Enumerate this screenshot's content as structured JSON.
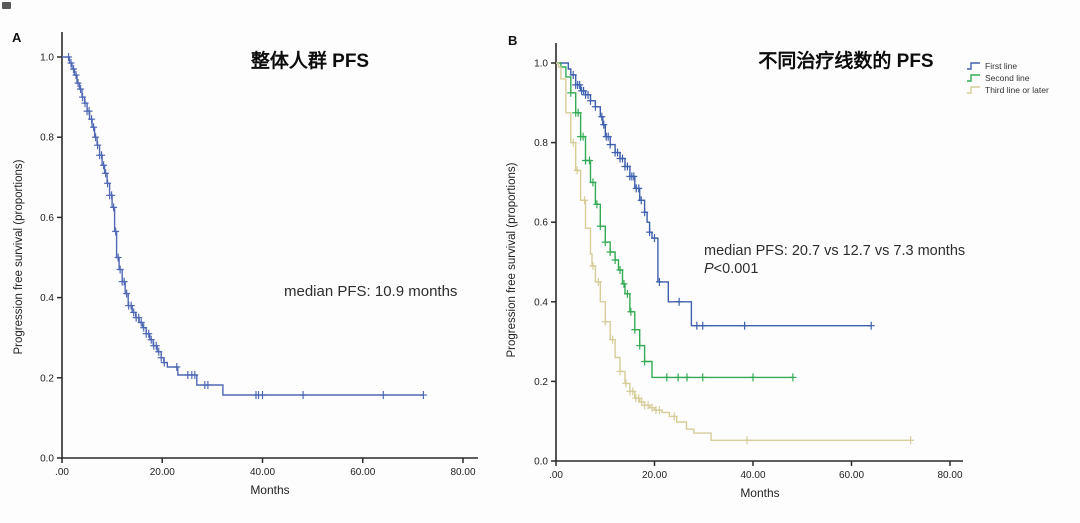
{
  "panels": [
    {
      "panel_letter": "A",
      "title": "整体人群 PFS",
      "xlabel": "Months",
      "ylabel": "Progression free survival (proportions)",
      "annotation": "median PFS: 10.9 months"
    },
    {
      "panel_letter": "B",
      "title": "不同治疗线数的 PFS",
      "xlabel": "Months",
      "ylabel": "Progression free survival (proportions)",
      "annotation": "median PFS: 20.7 vs 12.7 vs 7.3 months",
      "p_value": "P<0.001",
      "legend": [
        {
          "label": "First line",
          "color": "#3e5fae"
        },
        {
          "label": "Second line",
          "color": "#33ab55"
        },
        {
          "label": "Third line or later",
          "color": "#d6cd98"
        }
      ]
    }
  ],
  "colors": {
    "axis": "#2b2b2b",
    "panel_a_curve": "#5069b5",
    "first_line": "#3e5fae",
    "second_line": "#33ab55",
    "third_line": "#d6cd98"
  },
  "chart_data": [
    {
      "type": "line",
      "subtype": "kaplan_meier_step",
      "panel": "A",
      "title": "整体人群 PFS",
      "xlabel": "Months",
      "ylabel": "Progression free survival (proportions)",
      "xlim": [
        0,
        80
      ],
      "ylim": [
        0.0,
        1.0
      ],
      "xtick_values": [
        0,
        20,
        40,
        60,
        80
      ],
      "xtick_labels": [
        ".00",
        "20.00",
        "40.00",
        "60.00",
        "80.00"
      ],
      "ytick_values": [
        0.0,
        0.2,
        0.4,
        0.6,
        0.8,
        1.0
      ],
      "ytick_labels": [
        "0.0",
        "0.2",
        "0.4",
        "0.6",
        "0.8",
        "1.0"
      ],
      "grid": false,
      "annotation": "median PFS: 10.9 months",
      "series": [
        {
          "name": "整体人群",
          "color": "#5069b5",
          "median_pfs_months": 10.9,
          "points": [
            [
              0,
              1.0
            ],
            [
              1,
              1.0
            ],
            [
              1.5,
              0.985
            ],
            [
              2,
              0.97
            ],
            [
              2.5,
              0.955
            ],
            [
              3,
              0.935
            ],
            [
              3.5,
              0.92
            ],
            [
              4,
              0.9
            ],
            [
              4.5,
              0.885
            ],
            [
              5,
              0.865
            ],
            [
              5.5,
              0.845
            ],
            [
              6,
              0.825
            ],
            [
              6.5,
              0.8
            ],
            [
              7,
              0.78
            ],
            [
              7.5,
              0.755
            ],
            [
              8,
              0.73
            ],
            [
              8.5,
              0.71
            ],
            [
              9,
              0.685
            ],
            [
              9.5,
              0.655
            ],
            [
              10,
              0.625
            ],
            [
              10.5,
              0.565
            ],
            [
              10.9,
              0.5
            ],
            [
              11.4,
              0.47
            ],
            [
              12,
              0.44
            ],
            [
              12.6,
              0.41
            ],
            [
              13.2,
              0.38
            ],
            [
              14,
              0.363
            ],
            [
              14.7,
              0.35
            ],
            [
              15.4,
              0.338
            ],
            [
              16.1,
              0.325
            ],
            [
              16.8,
              0.31
            ],
            [
              17.5,
              0.295
            ],
            [
              18.2,
              0.28
            ],
            [
              19,
              0.265
            ],
            [
              19.8,
              0.25
            ],
            [
              20.3,
              0.238
            ],
            [
              21,
              0.227
            ],
            [
              23.1,
              0.207
            ],
            [
              26.9,
              0.182
            ],
            [
              32.1,
              0.157
            ],
            [
              72.1,
              0.157
            ]
          ],
          "censor_months": [
            1.3,
            1.8,
            2.3,
            2.8,
            3.2,
            3.7,
            4.1,
            4.6,
            5,
            5.4,
            5.9,
            6.3,
            6.7,
            7.1,
            7.5,
            7.9,
            8.3,
            8.7,
            9.1,
            9.5,
            9.9,
            10.3,
            10.7,
            11.2,
            11.6,
            12,
            12.4,
            12.9,
            13.3,
            13.8,
            14.3,
            14.8,
            15.3,
            15.8,
            16.3,
            16.8,
            17.3,
            17.8,
            18.3,
            18.8,
            19.3,
            19.8,
            20.4,
            22.9,
            25.1,
            25.9,
            26.5,
            28.5,
            29.1,
            38.7,
            39.2,
            40,
            48.1,
            64.1,
            72.1
          ]
        }
      ]
    },
    {
      "type": "line",
      "subtype": "kaplan_meier_step",
      "panel": "B",
      "title": "不同治疗线数的 PFS",
      "xlabel": "Months",
      "ylabel": "Progression free survival (proportions)",
      "xlim": [
        0,
        80
      ],
      "ylim": [
        0.0,
        1.0
      ],
      "xtick_values": [
        0,
        20,
        40,
        60,
        80
      ],
      "xtick_labels": [
        ".00",
        "20.00",
        "40.00",
        "60.00",
        "80.00"
      ],
      "ytick_values": [
        0.0,
        0.2,
        0.4,
        0.6,
        0.8,
        1.0
      ],
      "ytick_labels": [
        "0.0",
        "0.2",
        "0.4",
        "0.6",
        "0.8",
        "1.0"
      ],
      "grid": false,
      "annotation": "median PFS: 20.7 vs 12.7 vs 7.3 months",
      "p_value": "P<0.001",
      "legend_position": "top-right outside",
      "series": [
        {
          "name": "First line",
          "color": "#3e5fae",
          "median_pfs_months": 20.7,
          "points": [
            [
              0,
              1.0
            ],
            [
              2,
              1.0
            ],
            [
              2.5,
              0.985
            ],
            [
              3,
              0.97
            ],
            [
              4,
              0.945
            ],
            [
              5,
              0.93
            ],
            [
              6,
              0.92
            ],
            [
              7,
              0.905
            ],
            [
              8,
              0.89
            ],
            [
              9,
              0.865
            ],
            [
              9.5,
              0.845
            ],
            [
              10,
              0.815
            ],
            [
              11,
              0.795
            ],
            [
              12,
              0.775
            ],
            [
              13,
              0.76
            ],
            [
              14,
              0.74
            ],
            [
              15,
              0.715
            ],
            [
              16,
              0.685
            ],
            [
              17,
              0.655
            ],
            [
              18,
              0.625
            ],
            [
              18.5,
              0.6
            ],
            [
              19,
              0.575
            ],
            [
              19.5,
              0.56
            ],
            [
              20.7,
              0.45
            ],
            [
              22.8,
              0.4
            ],
            [
              27.5,
              0.34
            ],
            [
              64,
              0.34
            ]
          ],
          "censor_months": [
            3.5,
            4,
            4.4,
            4.8,
            5.2,
            5.6,
            6,
            6.5,
            7,
            8,
            9.3,
            9.7,
            10.2,
            10.6,
            11,
            12,
            12.5,
            13,
            13.5,
            14,
            14.5,
            15,
            15.4,
            15.8,
            16.3,
            16.8,
            17.3,
            18,
            19,
            20,
            21,
            25,
            28.6,
            29.8,
            38.3,
            64
          ]
        },
        {
          "name": "Second line",
          "color": "#33ab55",
          "median_pfs_months": 12.7,
          "points": [
            [
              0,
              1.0
            ],
            [
              1,
              0.99
            ],
            [
              2,
              0.965
            ],
            [
              3,
              0.925
            ],
            [
              4,
              0.875
            ],
            [
              5,
              0.815
            ],
            [
              6,
              0.755
            ],
            [
              7,
              0.7
            ],
            [
              8,
              0.645
            ],
            [
              9,
              0.59
            ],
            [
              10,
              0.55
            ],
            [
              11,
              0.525
            ],
            [
              12,
              0.505
            ],
            [
              12.7,
              0.48
            ],
            [
              13.5,
              0.445
            ],
            [
              14,
              0.42
            ],
            [
              15,
              0.375
            ],
            [
              16,
              0.33
            ],
            [
              17,
              0.29
            ],
            [
              18,
              0.25
            ],
            [
              19.5,
              0.21
            ],
            [
              48.1,
              0.21
            ]
          ],
          "censor_months": [
            3,
            4,
            4.5,
            5,
            5.5,
            6,
            6.8,
            7.5,
            8.3,
            9,
            10,
            11,
            12,
            13,
            13.8,
            14.5,
            15.2,
            16,
            17,
            18,
            22.5,
            24.8,
            26.6,
            29.8,
            40,
            48.1
          ]
        },
        {
          "name": "Third line or later",
          "color": "#d6cd98",
          "median_pfs_months": 7.3,
          "points": [
            [
              0,
              1.0
            ],
            [
              0.5,
              0.99
            ],
            [
              1,
              0.96
            ],
            [
              2,
              0.875
            ],
            [
              3,
              0.8
            ],
            [
              4,
              0.73
            ],
            [
              5,
              0.655
            ],
            [
              6,
              0.585
            ],
            [
              7,
              0.52
            ],
            [
              7.3,
              0.49
            ],
            [
              8,
              0.45
            ],
            [
              9,
              0.4
            ],
            [
              10,
              0.35
            ],
            [
              11,
              0.305
            ],
            [
              12,
              0.26
            ],
            [
              13,
              0.225
            ],
            [
              14,
              0.195
            ],
            [
              15,
              0.175
            ],
            [
              16,
              0.158
            ],
            [
              17,
              0.148
            ],
            [
              18,
              0.14
            ],
            [
              19,
              0.134
            ],
            [
              20,
              0.128
            ],
            [
              21.5,
              0.122
            ],
            [
              23,
              0.112
            ],
            [
              24.5,
              0.098
            ],
            [
              26.5,
              0.08
            ],
            [
              28,
              0.07
            ],
            [
              31.5,
              0.052
            ],
            [
              72,
              0.052
            ]
          ],
          "censor_months": [
            3.5,
            4.3,
            5.8,
            7.5,
            8.6,
            10,
            11.5,
            13,
            14.2,
            15,
            15.6,
            16.2,
            16.8,
            17.4,
            18,
            18.7,
            19.5,
            20.3,
            21,
            24,
            38.8,
            72
          ]
        }
      ]
    }
  ]
}
